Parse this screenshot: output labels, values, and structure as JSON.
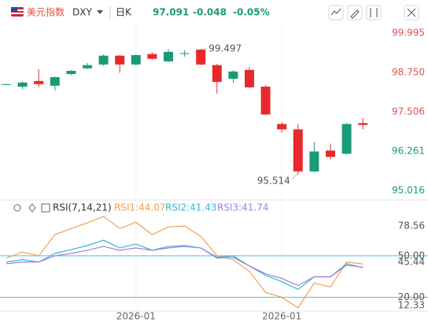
{
  "header": {
    "name": "美元指数",
    "code": "DXY",
    "period": "日K",
    "price": "97.091",
    "change": "-0.048",
    "change_pct": "-0.05%"
  },
  "indicator": {
    "name": "RSI(7,14,21)",
    "labels": [
      "RSI1:44.07",
      "RSI2:41.43",
      "RSI3:41.74"
    ]
  },
  "chart_data": [
    {
      "type": "candlestick",
      "up_color": "#1a9b78",
      "down_color": "#e8282b",
      "categories": [
        null,
        null,
        null,
        null,
        null,
        null,
        null,
        null,
        "2026-01",
        null,
        null,
        null,
        null,
        null,
        null,
        null,
        null,
        "2026-01",
        null,
        null,
        null,
        null,
        null
      ],
      "open": [
        98.38,
        98.3,
        98.48,
        98.33,
        98.7,
        98.88,
        99.0,
        99.28,
        99.0,
        99.33,
        99.1,
        99.35,
        99.47,
        98.98,
        98.55,
        98.83,
        98.3,
        97.12,
        96.95,
        95.62,
        96.28,
        96.18,
        97.15
      ],
      "high": [
        98.4,
        98.46,
        98.85,
        98.62,
        98.83,
        99.05,
        99.32,
        99.3,
        99.32,
        99.38,
        99.48,
        99.45,
        99.497,
        99.02,
        98.82,
        98.92,
        98.35,
        97.18,
        97.13,
        96.55,
        96.5,
        97.15,
        97.3
      ],
      "low": [
        98.36,
        98.22,
        98.28,
        98.18,
        98.66,
        98.85,
        98.96,
        98.74,
        98.98,
        99.15,
        99.08,
        99.25,
        98.98,
        98.08,
        98.42,
        98.25,
        97.4,
        96.85,
        95.514,
        95.6,
        96.0,
        96.15,
        96.95
      ],
      "close": [
        98.38,
        98.43,
        98.38,
        98.6,
        98.8,
        98.98,
        99.28,
        99.0,
        99.3,
        99.18,
        99.4,
        99.36,
        99.0,
        98.45,
        98.78,
        98.28,
        97.42,
        96.95,
        95.62,
        96.25,
        96.08,
        97.12,
        97.091
      ],
      "high_label": "99.497",
      "low_label": "95.514",
      "ylim": [
        94.817,
        100.293
      ],
      "yticks": [
        99.995,
        {
          "value": 98.75,
          "label": "98.750"
        },
        97.506,
        96.261,
        95.016
      ]
    },
    {
      "type": "line",
      "series": [
        {
          "name": "RSI1",
          "color": "#f0a050",
          "values": [
            48.3,
            52.8,
            50,
            65.3,
            69.8,
            73.8,
            78.56,
            69.8,
            74.3,
            65.3,
            70.9,
            71.5,
            64.1,
            50,
            47.2,
            38.7,
            23.4,
            20.0,
            12.33,
            30.2,
            27.4,
            45.5,
            44.07
          ]
        },
        {
          "name": "RSI2",
          "color": "#38b8c8",
          "values": [
            45.5,
            47.2,
            45.5,
            51.7,
            54.5,
            57.4,
            61.3,
            55.7,
            58.5,
            54.0,
            56.8,
            57.4,
            55.7,
            48.9,
            50,
            42.6,
            35.9,
            31.3,
            25.7,
            34.8,
            34.8,
            44.3,
            41.43
          ]
        },
        {
          "name": "RSI3",
          "color": "#a080e0",
          "values": [
            44.3,
            45.5,
            45.5,
            50,
            51.7,
            54,
            56.8,
            54,
            55.7,
            54,
            55.7,
            56.8,
            55.7,
            48.3,
            48.9,
            42.6,
            37,
            33.6,
            28.5,
            34.8,
            34.8,
            43.2,
            41.74
          ]
        }
      ],
      "ylim": [
        10,
        79
      ],
      "yticks": [
        78.56,
        {
          "value": 50,
          "label": "50.00"
        },
        45.44,
        {
          "value": 20,
          "label": "20.00"
        },
        12.33
      ],
      "hlines": [
        50,
        20
      ],
      "hline_color": "#5bb8e8"
    }
  ]
}
